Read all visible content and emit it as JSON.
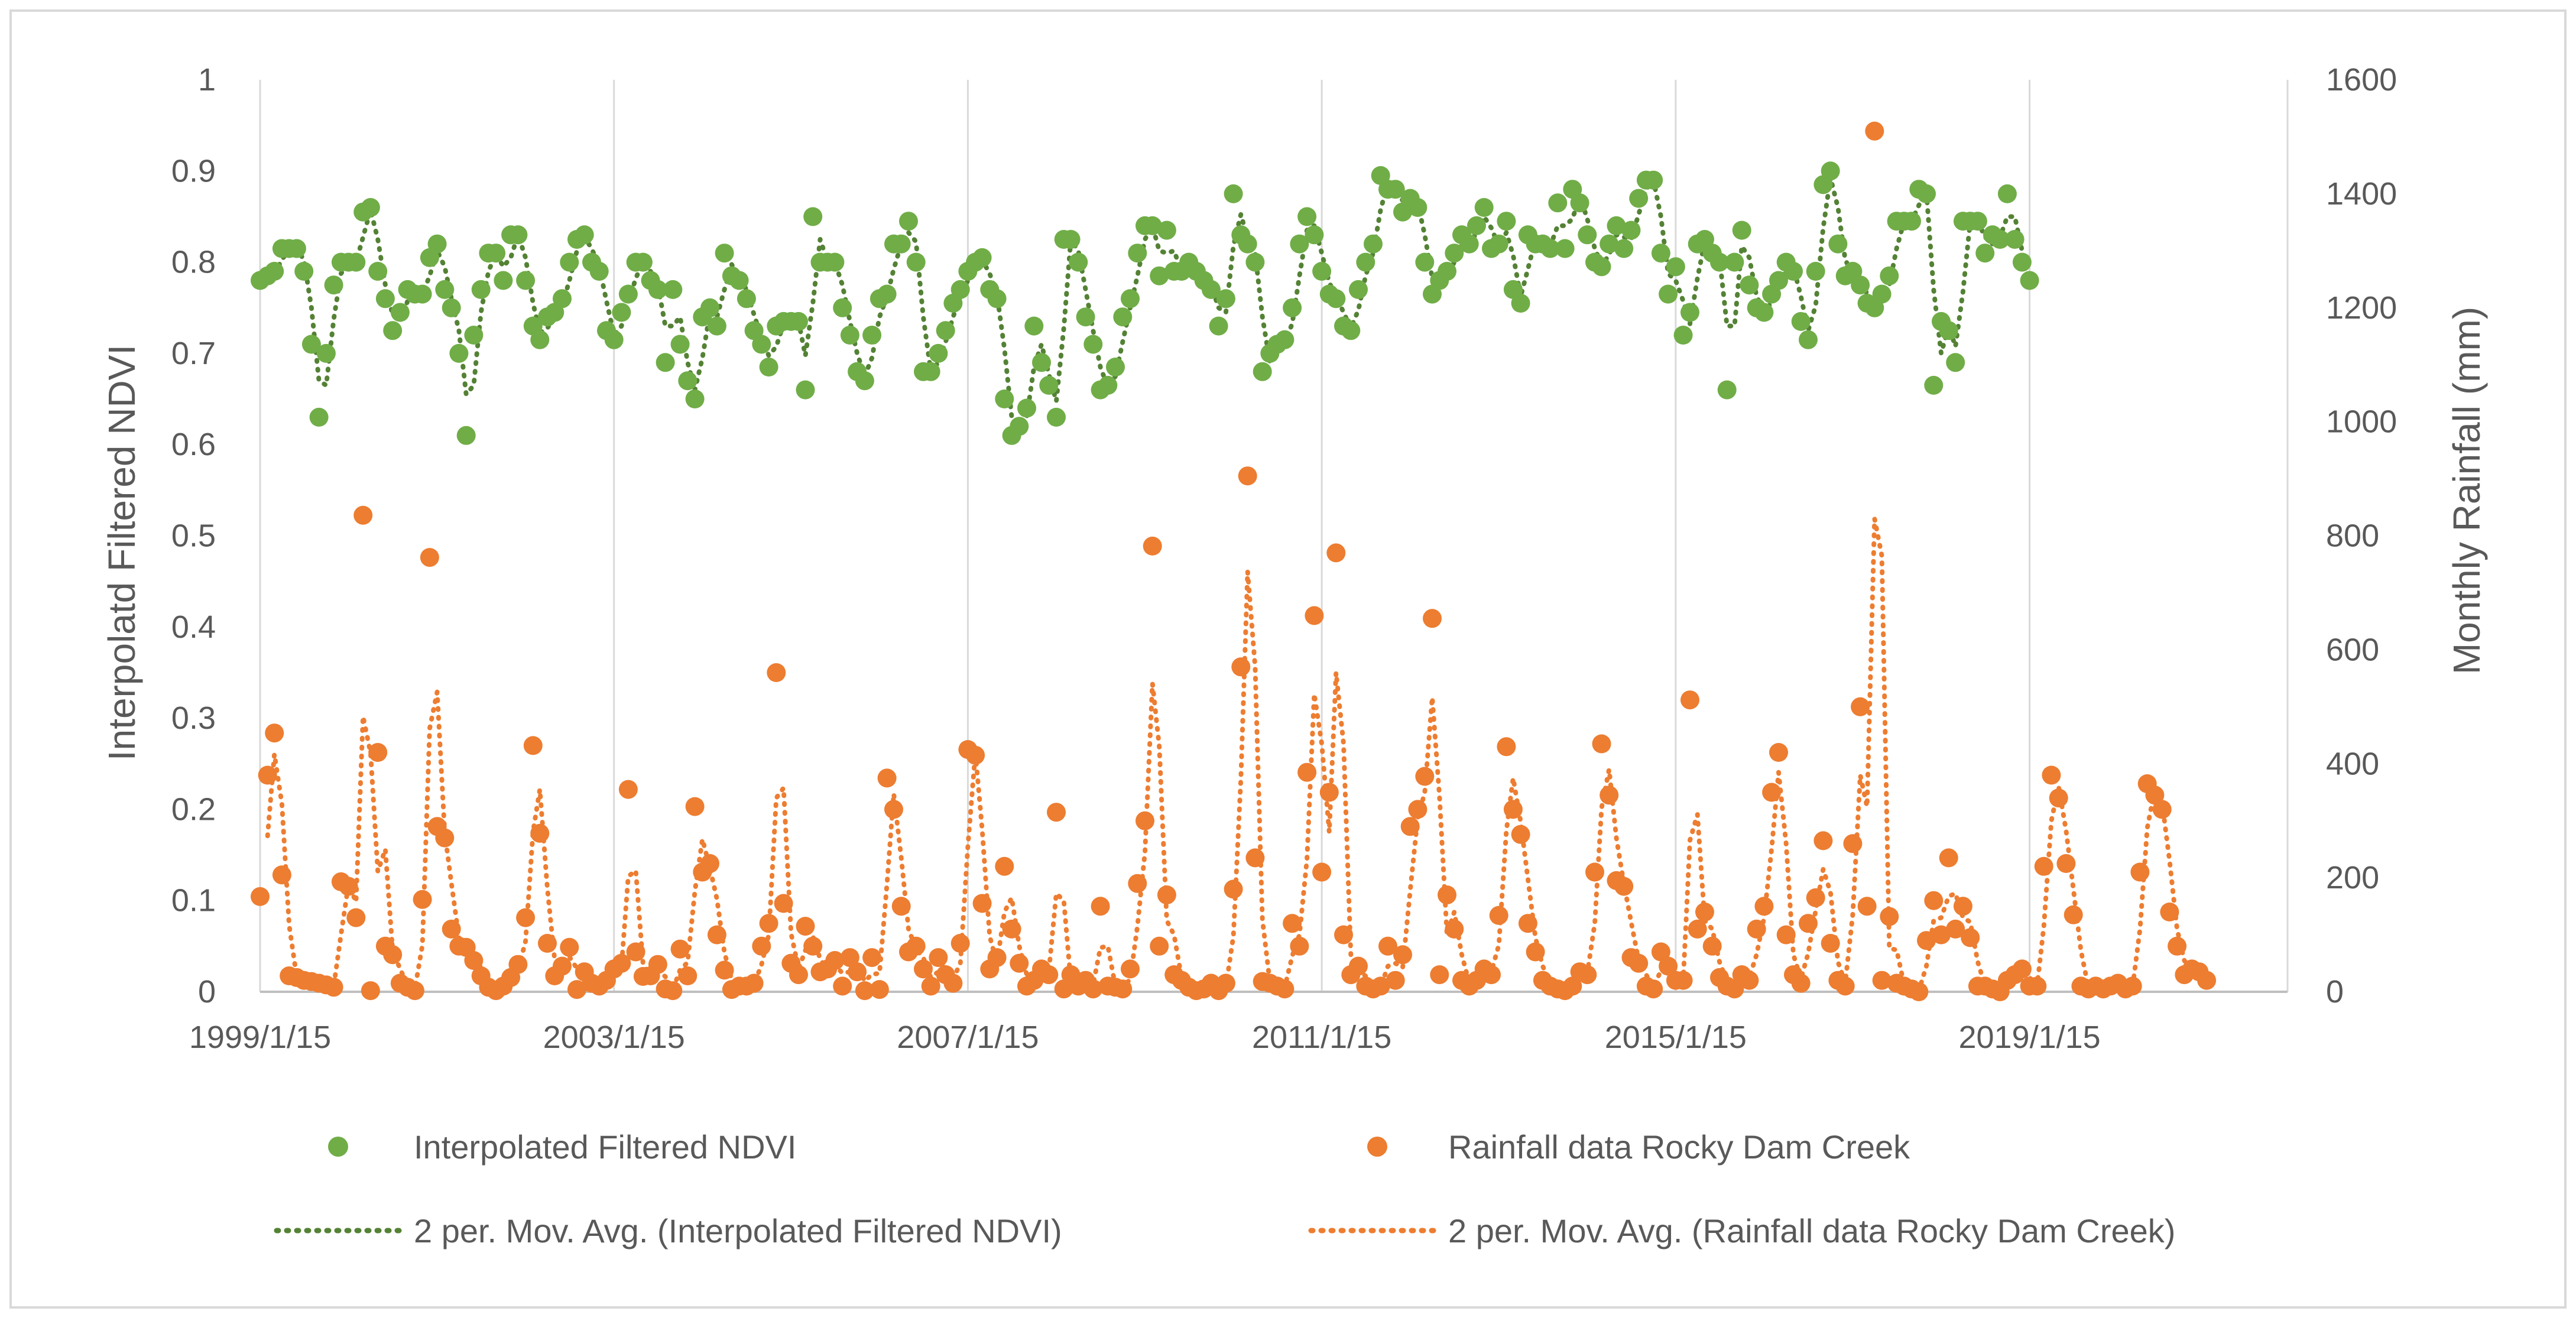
{
  "chart_data": {
    "type": "scatter",
    "title": "",
    "xlabel": "",
    "ylabel_left": "Interpolatd Filtered NDVI",
    "ylabel_right": "Monthly Rainfall (mm)",
    "x_range": [
      "1999-01-15",
      "2021-12-15"
    ],
    "x_tick_labels": [
      "1999/1/15",
      "2003/1/15",
      "2007/1/15",
      "2011/1/15",
      "2015/1/15",
      "2019/1/15"
    ],
    "y_left_range": [
      0,
      1
    ],
    "y_left_ticks": [
      "0",
      "0.1",
      "0.2",
      "0.3",
      "0.4",
      "0.5",
      "0.6",
      "0.7",
      "0.8",
      "0.9",
      "1"
    ],
    "y_right_range": [
      0,
      1600
    ],
    "y_right_ticks": [
      "0",
      "200",
      "400",
      "600",
      "800",
      "1000",
      "1200",
      "1400",
      "1600"
    ],
    "gridlines": "vertical",
    "legend_position": "bottom",
    "legend": [
      {
        "label": "Interpolated Filtered NDVI",
        "style": "marker"
      },
      {
        "label": "Rainfall data Rocky Dam Creek",
        "style": "marker"
      },
      {
        "label": "2 per. Mov. Avg. (Interpolated Filtered NDVI)",
        "style": "dotted-line"
      },
      {
        "label": "2 per. Mov. Avg. (Rainfall data Rocky Dam Creek)",
        "style": "dotted-line"
      }
    ],
    "colors": {
      "ndvi": "#70AD47",
      "ndvi_trend": "#548235",
      "rain": "#ED7D31",
      "grid": "#D9D9D9",
      "text": "#595959"
    },
    "series": [
      {
        "name": "Interpolated Filtered NDVI",
        "axis": "left",
        "start": "1999-01",
        "values": [
          0.78,
          0.785,
          0.79,
          0.815,
          0.815,
          0.815,
          0.79,
          0.71,
          0.63,
          0.7,
          0.775,
          0.8,
          0.8,
          0.8,
          0.855,
          0.86,
          0.79,
          0.76,
          0.725,
          0.745,
          0.77,
          0.765,
          0.765,
          0.805,
          0.82,
          0.77,
          0.75,
          0.7,
          0.61,
          0.72,
          0.77,
          0.81,
          0.81,
          0.78,
          0.83,
          0.83,
          0.78,
          0.73,
          0.715,
          0.74,
          0.745,
          0.76,
          0.8,
          0.825,
          0.83,
          0.8,
          0.79,
          0.725,
          0.715,
          0.745,
          0.765,
          0.8,
          0.8,
          0.78,
          0.77,
          0.69,
          0.77,
          0.71,
          0.67,
          0.65,
          0.74,
          0.75,
          0.73,
          0.81,
          0.785,
          0.78,
          0.76,
          0.725,
          0.71,
          0.685,
          0.73,
          0.735,
          0.735,
          0.735,
          0.66,
          0.85,
          0.8,
          0.8,
          0.8,
          0.75,
          0.72,
          0.68,
          0.67,
          0.72,
          0.76,
          0.765,
          0.82,
          0.82,
          0.845,
          0.8,
          0.68,
          0.68,
          0.7,
          0.725,
          0.755,
          0.77,
          0.79,
          0.8,
          0.805,
          0.77,
          0.76,
          0.65,
          0.61,
          0.62,
          0.64,
          0.73,
          0.69,
          0.665,
          0.63,
          0.825,
          0.825,
          0.8,
          0.74,
          0.71,
          0.66,
          0.665,
          0.685,
          0.74,
          0.76,
          0.81,
          0.84,
          0.84,
          0.785,
          0.835,
          0.79,
          0.79,
          0.8,
          0.79,
          0.78,
          0.77,
          0.73,
          0.76,
          0.875,
          0.83,
          0.82,
          0.8,
          0.68,
          0.7,
          0.71,
          0.715,
          0.75,
          0.82,
          0.85,
          0.83,
          0.79,
          0.765,
          0.76,
          0.73,
          0.725,
          0.77,
          0.8,
          0.82,
          0.895,
          0.88,
          0.88,
          0.855,
          0.87,
          0.86,
          0.8,
          0.765,
          0.78,
          0.79,
          0.81,
          0.83,
          0.82,
          0.84,
          0.86,
          0.815,
          0.82,
          0.845,
          0.77,
          0.755,
          0.83,
          0.82,
          0.82,
          0.815,
          0.865,
          0.815,
          0.88,
          0.865,
          0.83,
          0.8,
          0.795,
          0.82,
          0.84,
          0.815,
          0.835,
          0.87,
          0.89,
          0.89,
          0.81,
          0.765,
          0.795,
          0.72,
          0.745,
          0.82,
          0.825,
          0.81,
          0.8,
          0.66,
          0.8,
          0.835,
          0.775,
          0.75,
          0.745,
          0.765,
          0.78,
          0.8,
          0.79,
          0.735,
          0.715,
          0.79,
          0.885,
          0.9,
          0.82,
          0.785,
          0.79,
          0.775,
          0.755,
          0.75,
          0.765,
          0.785,
          0.845,
          0.845,
          0.845,
          0.88,
          0.875,
          0.665,
          0.735,
          0.725,
          0.69,
          0.845,
          0.845,
          0.845,
          0.81,
          0.83,
          0.825,
          0.875,
          0.825,
          0.8,
          0.78
        ]
      },
      {
        "name": "Rainfall data Rocky Dam Creek",
        "axis": "right",
        "start": "1999-01",
        "values": [
          167,
          380,
          454,
          205,
          28,
          25,
          20,
          18,
          15,
          12,
          8,
          193,
          185,
          130,
          836,
          2,
          420,
          80,
          65,
          15,
          8,
          2,
          162,
          762,
          290,
          270,
          110,
          80,
          78,
          55,
          28,
          8,
          2,
          10,
          25,
          48,
          130,
          432,
          278,
          85,
          28,
          45,
          78,
          4,
          35,
          15,
          10,
          20,
          40,
          50,
          355,
          70,
          27,
          28,
          48,
          5,
          2,
          75,
          28,
          325,
          210,
          225,
          100,
          38,
          4,
          10,
          10,
          15,
          80,
          120,
          560,
          155,
          50,
          30,
          115,
          80,
          35,
          40,
          55,
          10,
          60,
          35,
          2,
          60,
          4,
          375,
          320,
          150,
          70,
          80,
          40,
          10,
          60,
          30,
          15,
          85,
          425,
          415,
          155,
          40,
          60,
          220,
          110,
          50,
          10,
          20,
          40,
          30,
          315,
          5,
          30,
          10,
          20,
          5,
          150,
          10,
          8,
          5,
          40,
          190,
          300,
          782,
          80,
          170,
          30,
          20,
          8,
          2,
          5,
          15,
          2,
          15,
          180,
          570,
          905,
          235,
          18,
          15,
          10,
          5,
          120,
          80,
          385,
          660,
          210,
          350,
          770,
          100,
          30,
          45,
          10,
          5,
          10,
          80,
          20,
          65,
          290,
          320,
          378,
          655,
          30,
          170,
          110,
          20,
          10,
          20,
          40,
          30,
          134,
          430,
          320,
          276,
          120,
          70,
          20,
          10,
          5,
          2,
          10,
          35,
          30,
          210,
          435,
          345,
          195,
          185,
          60,
          50,
          10,
          5,
          70,
          45,
          20,
          20,
          512,
          110,
          140,
          80,
          25,
          10,
          5,
          30,
          20,
          110,
          150,
          350,
          420,
          100,
          30,
          15,
          120,
          165,
          265,
          85,
          20,
          10,
          260,
          500,
          150,
          1510,
          20,
          132,
          15,
          10,
          5,
          0,
          90,
          160,
          100,
          235,
          110,
          150,
          95,
          10,
          10,
          5,
          0,
          20,
          30,
          40,
          10,
          10,
          220,
          380,
          340,
          225,
          135,
          10,
          5,
          10,
          5,
          10,
          15,
          5,
          10,
          210,
          365,
          345,
          320,
          140,
          80,
          30,
          40,
          35,
          20
        ]
      }
    ],
    "moving_average_period": 2
  }
}
